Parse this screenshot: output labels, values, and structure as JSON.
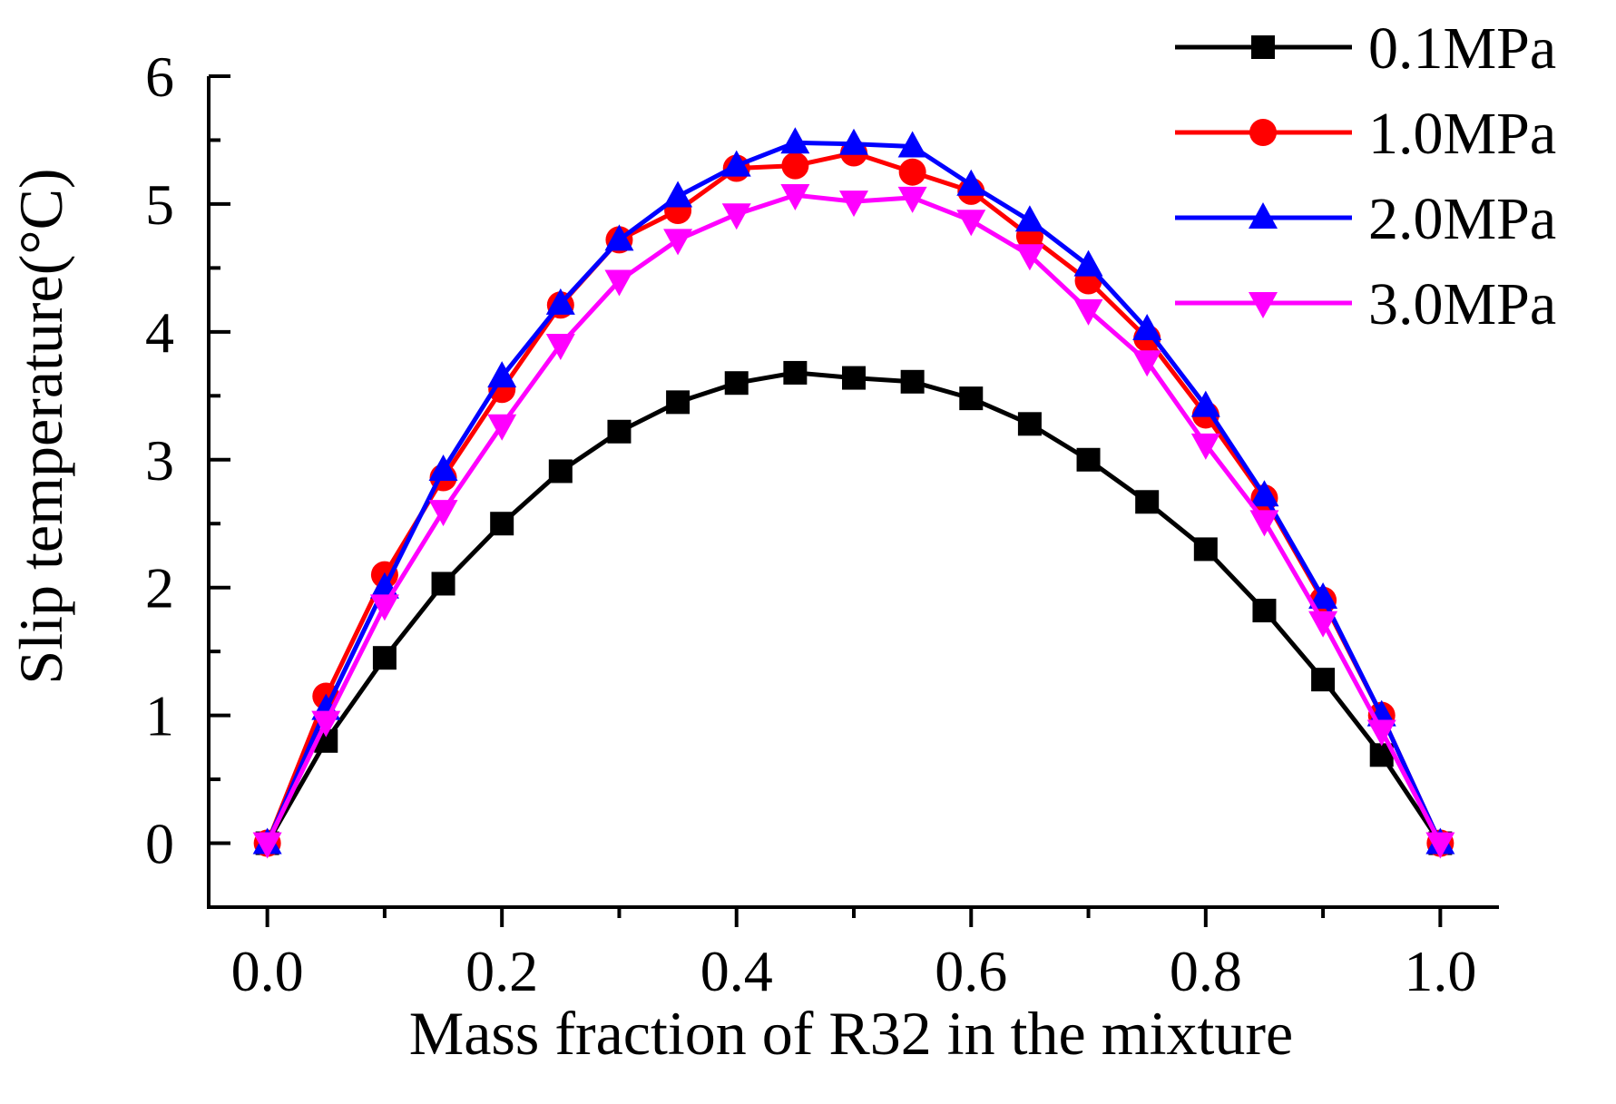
{
  "chart_data": {
    "type": "line",
    "title": "",
    "xlabel": "Mass fraction of R32 in the mixture",
    "ylabel": "Slip temperature(°C)",
    "xlim": [
      -0.05,
      1.05
    ],
    "ylim": [
      -0.5,
      6
    ],
    "x_ticks": [
      0.0,
      0.2,
      0.4,
      0.6,
      0.8,
      1.0
    ],
    "x_tick_labels": [
      "0.0",
      "0.2",
      "0.4",
      "0.6",
      "0.8",
      "1.0"
    ],
    "y_ticks": [
      0,
      1,
      2,
      3,
      4,
      5,
      6
    ],
    "y_tick_labels": [
      "0",
      "1",
      "2",
      "3",
      "4",
      "5",
      "6"
    ],
    "grid": false,
    "legend_position": "top-right",
    "x": [
      0,
      0.05,
      0.1,
      0.15,
      0.2,
      0.25,
      0.3,
      0.35,
      0.4,
      0.45,
      0.5,
      0.55,
      0.6,
      0.65,
      0.7,
      0.75,
      0.8,
      0.85,
      0.9,
      0.95,
      1.0
    ],
    "series": [
      {
        "name": "0.1MPa",
        "color": "#000000",
        "marker": "square",
        "values": [
          0,
          0.8,
          1.45,
          2.03,
          2.5,
          2.91,
          3.22,
          3.45,
          3.6,
          3.68,
          3.64,
          3.61,
          3.48,
          3.28,
          3.0,
          2.67,
          2.3,
          1.82,
          1.28,
          0.69,
          0
        ]
      },
      {
        "name": "1.0MPa",
        "color": "#ff0000",
        "marker": "circle",
        "values": [
          0,
          1.15,
          2.1,
          2.86,
          3.55,
          4.21,
          4.72,
          4.95,
          5.28,
          5.3,
          5.4,
          5.25,
          5.1,
          4.75,
          4.4,
          3.95,
          3.35,
          2.7,
          1.9,
          1.0,
          0
        ]
      },
      {
        "name": "2.0MPa",
        "color": "#0000ff",
        "marker": "triangle-up",
        "values": [
          0,
          1.05,
          2.0,
          2.92,
          3.65,
          4.22,
          4.72,
          5.06,
          5.3,
          5.48,
          5.47,
          5.45,
          5.15,
          4.87,
          4.52,
          4.02,
          3.42,
          2.72,
          1.92,
          1.0,
          0
        ]
      },
      {
        "name": "3.0MPa",
        "color": "#ff00ff",
        "marker": "triangle-down",
        "values": [
          0,
          0.95,
          1.86,
          2.6,
          3.27,
          3.9,
          4.4,
          4.72,
          4.92,
          5.07,
          5.02,
          5.05,
          4.87,
          4.6,
          4.17,
          3.77,
          3.12,
          2.52,
          1.73,
          0.88,
          0
        ]
      }
    ]
  }
}
